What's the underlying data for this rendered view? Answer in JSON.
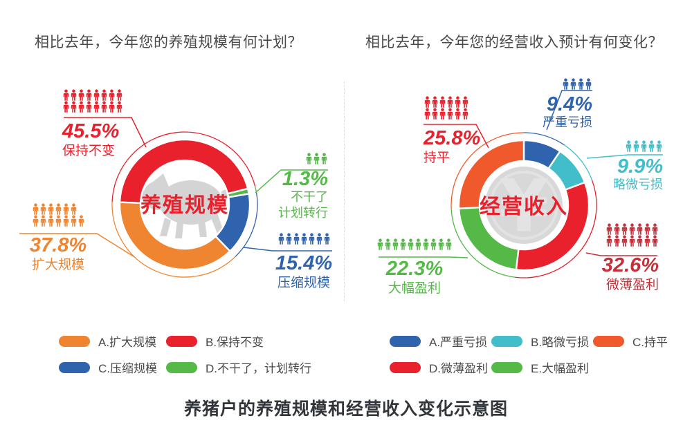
{
  "titles": {
    "left_question": "相比去年，今年您的养殖规模有何计划？",
    "right_question": "相比去年，今年您的经营收入预计有何变化？",
    "bottom_title": "养猪户的养殖规模和经营收入变化示意图"
  },
  "chart_data": [
    {
      "type": "pie",
      "variant": "donut",
      "title": "相比去年，今年您的养殖规模有何计划？",
      "center_label": "养殖规模",
      "center_icon": "pig",
      "center_label_color": "#e8212d",
      "unit": "%",
      "start_angle": 272,
      "segments": [
        {
          "label": "保持不变",
          "value": 45.5,
          "pct_text": "45.5%",
          "color": "#e8212d",
          "callout_color": "#e8212d",
          "icon_rows": [
            8,
            8
          ],
          "label_lines": [
            "保持不变"
          ]
        },
        {
          "label": "不干了计划转行",
          "value": 1.3,
          "pct_text": "1.3%",
          "color": "#55b948",
          "callout_color": "#55b948",
          "icon_rows": [
            3
          ],
          "label_lines": [
            "不干了",
            "计划转行"
          ]
        },
        {
          "label": "压缩规模",
          "value": 15.4,
          "pct_text": "15.4%",
          "color": "#2f63ae",
          "callout_color": "#2f63ae",
          "icon_rows": [
            7
          ],
          "label_lines": [
            "压缩规模"
          ]
        },
        {
          "label": "扩大规模",
          "value": 37.8,
          "pct_text": "37.8%",
          "color": "#ef8531",
          "callout_color": "#ef8531",
          "icon_rows": [
            6,
            7
          ],
          "label_lines": [
            "扩大规模"
          ]
        }
      ],
      "legend": [
        {
          "label": "A.扩大规模",
          "color": "#ef8531"
        },
        {
          "label": "B.保持不变",
          "color": "#e8212d"
        },
        {
          "label": "C.压缩规模",
          "color": "#2f63ae"
        },
        {
          "label": "D.不干了，计划转行",
          "color": "#55b948"
        }
      ]
    },
    {
      "type": "pie",
      "variant": "donut",
      "title": "相比去年，今年您的经营收入预计有何变化？",
      "center_label": "经营收入",
      "center_icon": "yuan-coin",
      "center_label_color": "#e8212d",
      "unit": "%",
      "start_angle": 0,
      "segments": [
        {
          "label": "严重亏损",
          "value": 9.4,
          "pct_text": "9.4%",
          "color": "#2f63ae",
          "callout_color": "#2f63ae",
          "icon_rows": [
            4
          ],
          "label_lines": [
            "严重亏损"
          ]
        },
        {
          "label": "略微亏损",
          "value": 9.9,
          "pct_text": "9.9%",
          "color": "#42becb",
          "callout_color": "#42becb",
          "icon_rows": [
            5
          ],
          "label_lines": [
            "略微亏损"
          ]
        },
        {
          "label": "微薄盈利",
          "value": 32.6,
          "pct_text": "32.6%",
          "color": "#e8212d",
          "callout_color": "#c62f38",
          "icon_rows": [
            7,
            7
          ],
          "label_lines": [
            "微薄盈利"
          ]
        },
        {
          "label": "大幅盈利",
          "value": 22.3,
          "pct_text": "22.3%",
          "color": "#55b948",
          "callout_color": "#55b948",
          "icon_rows": [
            10
          ],
          "label_lines": [
            "大幅盈利"
          ]
        },
        {
          "label": "持平",
          "value": 25.8,
          "pct_text": "25.8%",
          "color": "#f0592b",
          "callout_color": "#e8212d",
          "icon_rows": [
            6,
            6
          ],
          "label_lines": [
            "持平"
          ]
        }
      ],
      "legend": [
        {
          "label": "A.严重亏损",
          "color": "#2f63ae"
        },
        {
          "label": "B.略微亏损",
          "color": "#42becb"
        },
        {
          "label": "C.持平",
          "color": "#f0592b"
        },
        {
          "label": "D.微薄盈利",
          "color": "#e8212d"
        },
        {
          "label": "E.大幅盈利",
          "color": "#55b948"
        }
      ]
    }
  ]
}
